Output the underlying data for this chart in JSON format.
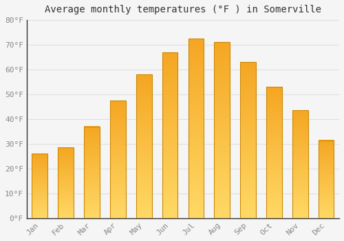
{
  "months": [
    "Jan",
    "Feb",
    "Mar",
    "Apr",
    "May",
    "Jun",
    "Jul",
    "Aug",
    "Sep",
    "Oct",
    "Nov",
    "Dec"
  ],
  "values": [
    26.0,
    28.5,
    37.0,
    47.5,
    58.0,
    67.0,
    72.5,
    71.0,
    63.0,
    53.0,
    43.5,
    31.5
  ],
  "bar_color_top": "#F5A623",
  "bar_color_bottom": "#FFD966",
  "bar_edge_color": "#CC8800",
  "title": "Average monthly temperatures (°F ) in Somerville",
  "ylim": [
    0,
    80
  ],
  "ytick_step": 10,
  "background_color": "#F5F5F5",
  "grid_color": "#E0E0E0",
  "title_fontsize": 10,
  "tick_fontsize": 8,
  "tick_color": "#888888",
  "left_spine_color": "#333333",
  "bottom_spine_color": "#333333"
}
